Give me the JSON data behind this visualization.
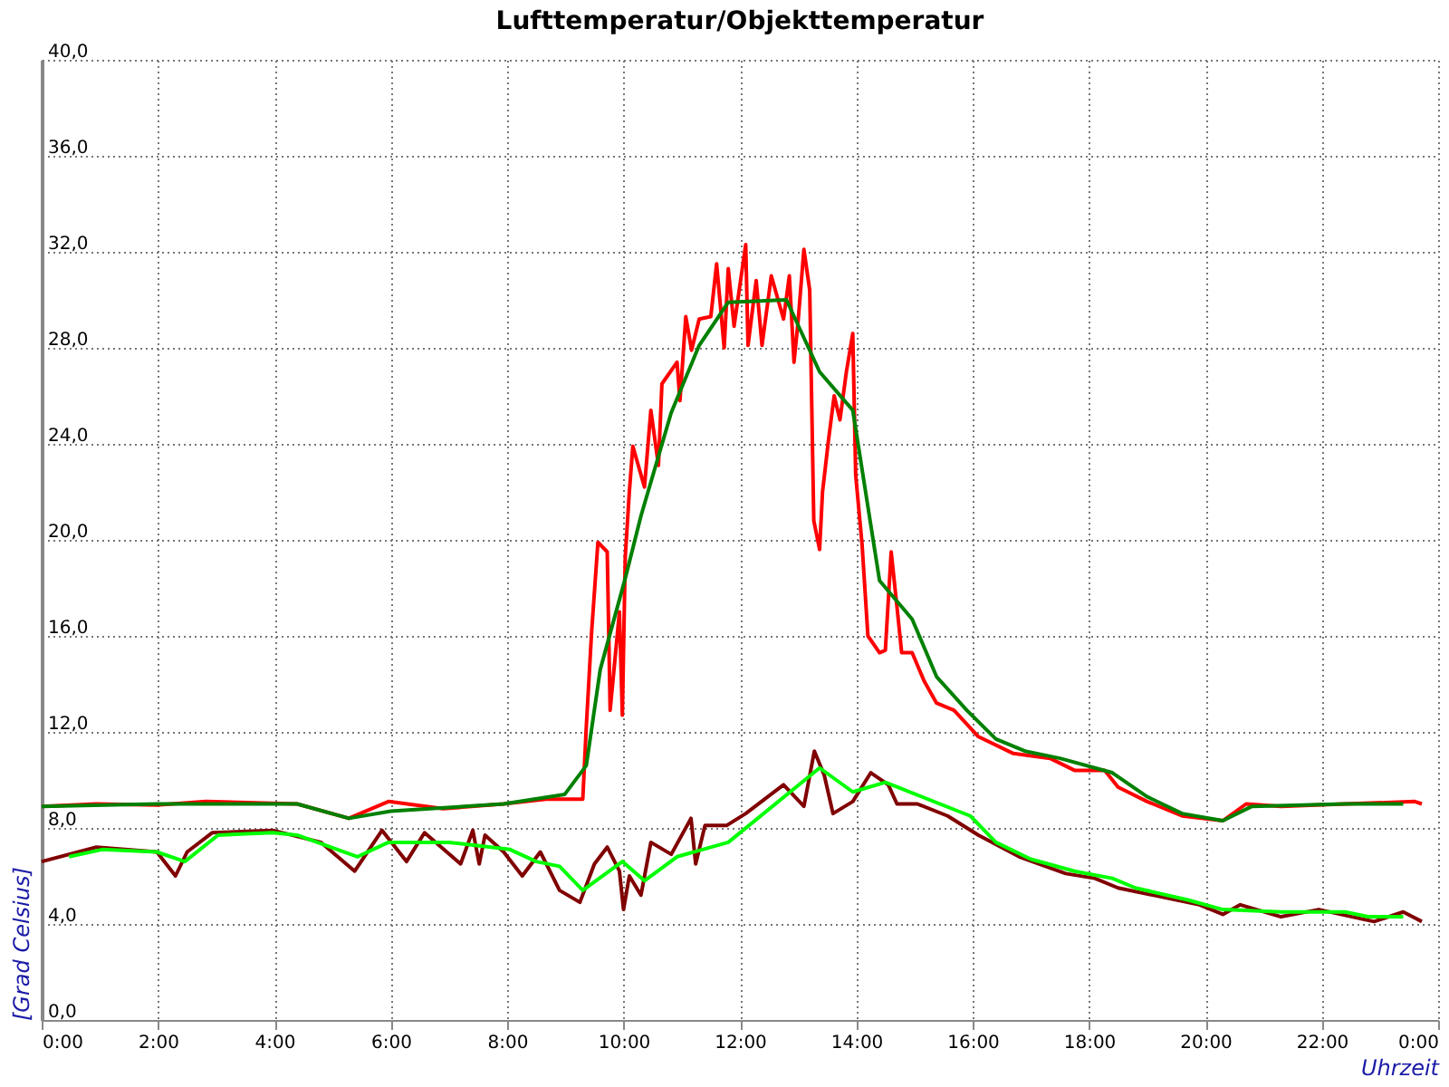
{
  "chart_data": {
    "type": "line",
    "title": "Lufttemperatur/Objekttemperatur",
    "xlabel": "Uhrzeit",
    "ylabel": "[Grad Celsius]",
    "xlim": [
      0,
      24
    ],
    "ylim": [
      0,
      40
    ],
    "xticks": [
      {
        "value": 0,
        "label": "0:00"
      },
      {
        "value": 2,
        "label": "2:00"
      },
      {
        "value": 4,
        "label": "4:00"
      },
      {
        "value": 6,
        "label": "6:00"
      },
      {
        "value": 8,
        "label": "8:00"
      },
      {
        "value": 10,
        "label": "10:00"
      },
      {
        "value": 12,
        "label": "12:00"
      },
      {
        "value": 14,
        "label": "14:00"
      },
      {
        "value": 16,
        "label": "16:00"
      },
      {
        "value": 18,
        "label": "18:00"
      },
      {
        "value": 20,
        "label": "20:00"
      },
      {
        "value": 22,
        "label": "22:00"
      },
      {
        "value": 24,
        "label": "0:00"
      }
    ],
    "yticks": [
      {
        "value": 0,
        "label": "0,0"
      },
      {
        "value": 4,
        "label": "4,0"
      },
      {
        "value": 8,
        "label": "8,0"
      },
      {
        "value": 12,
        "label": "12,0"
      },
      {
        "value": 16,
        "label": "16,0"
      },
      {
        "value": 20,
        "label": "20,0"
      },
      {
        "value": 24,
        "label": "24,0"
      },
      {
        "value": 28,
        "label": "28,0"
      },
      {
        "value": 32,
        "label": "32,0"
      },
      {
        "value": 36,
        "label": "36,0"
      },
      {
        "value": 40,
        "label": "40,0"
      }
    ],
    "grid": true,
    "line_style": "solid",
    "marker": "none",
    "series": [
      {
        "color": "#ff0000",
        "x": [
          0,
          0.94,
          1.98,
          2.82,
          4.39,
          5.28,
          5.96,
          6.9,
          7.94,
          8.67,
          9.3,
          9.36,
          9.45,
          9.56,
          9.72,
          9.77,
          9.93,
          9.98,
          10.03,
          10.1,
          10.16,
          10.36,
          10.47,
          10.6,
          10.66,
          10.92,
          10.97,
          11.07,
          11.17,
          11.3,
          11.5,
          11.6,
          11.73,
          11.8,
          11.9,
          12.1,
          12.14,
          12.28,
          12.38,
          12.54,
          12.75,
          12.85,
          12.93,
          13.0,
          13.1,
          13.2,
          13.27,
          13.37,
          13.42,
          13.52,
          13.62,
          13.72,
          13.83,
          13.94,
          13.99,
          14.1,
          14.2,
          14.4,
          14.5,
          14.6,
          14.7,
          14.78,
          14.96,
          15.17,
          15.38,
          15.68,
          16.1,
          16.7,
          17.33,
          17.75,
          18.27,
          18.5,
          19.0,
          19.6,
          20.3,
          20.7,
          21.3,
          22.4,
          23.6,
          23.72
        ],
        "values": [
          8.9,
          9.0,
          8.95,
          9.1,
          9.0,
          8.4,
          9.1,
          8.8,
          9.0,
          9.2,
          9.2,
          12.2,
          16.1,
          19.9,
          19.5,
          12.9,
          17.0,
          12.7,
          19.3,
          22.0,
          23.9,
          22.2,
          25.4,
          23.1,
          26.5,
          27.4,
          25.8,
          29.3,
          27.9,
          29.2,
          29.3,
          31.5,
          28.0,
          31.3,
          28.9,
          32.3,
          28.1,
          30.8,
          28.1,
          31.0,
          29.2,
          31.0,
          27.4,
          29.1,
          32.1,
          30.4,
          20.8,
          19.6,
          22.0,
          24.1,
          26.0,
          25.0,
          27.0,
          28.6,
          22.7,
          19.8,
          16.0,
          15.3,
          15.4,
          19.5,
          17.2,
          15.3,
          15.3,
          14.1,
          13.2,
          12.9,
          11.8,
          11.1,
          10.9,
          10.4,
          10.4,
          9.7,
          9.1,
          8.5,
          8.3,
          9.0,
          8.9,
          9.0,
          9.1,
          9.0
        ]
      },
      {
        "color": "#008000",
        "x": [
          0,
          1.98,
          4.39,
          5.28,
          6.0,
          7.94,
          8.99,
          9.36,
          9.6,
          10.03,
          10.3,
          10.82,
          11.3,
          11.8,
          12.8,
          13.37,
          13.94,
          14.4,
          14.96,
          15.38,
          15.9,
          16.4,
          16.9,
          17.5,
          18.4,
          19.0,
          19.6,
          20.3,
          20.8,
          22.4,
          23.4
        ],
        "values": [
          8.9,
          9.0,
          9.0,
          8.4,
          8.7,
          9.0,
          9.4,
          10.6,
          14.6,
          18.4,
          21.0,
          25.3,
          28.1,
          29.9,
          30.0,
          27.0,
          25.4,
          18.3,
          16.7,
          14.3,
          12.9,
          11.7,
          11.2,
          10.9,
          10.3,
          9.3,
          8.6,
          8.3,
          8.9,
          9.0,
          9.0
        ]
      },
      {
        "color": "#800000",
        "x": [
          0,
          0.94,
          1.98,
          2.3,
          2.5,
          2.93,
          3.97,
          4.8,
          5.38,
          5.85,
          6.27,
          6.58,
          7.2,
          7.41,
          7.52,
          7.62,
          7.94,
          8.26,
          8.57,
          8.9,
          9.25,
          9.5,
          9.72,
          9.93,
          10.0,
          10.1,
          10.3,
          10.47,
          10.82,
          11.16,
          11.24,
          11.4,
          11.77,
          12.1,
          12.75,
          13.1,
          13.28,
          13.45,
          13.6,
          13.94,
          14.25,
          14.55,
          14.7,
          15.05,
          15.57,
          16.1,
          16.8,
          17.6,
          18.1,
          18.5,
          19.9,
          20.3,
          20.6,
          21.3,
          21.95,
          22.9,
          23.4,
          23.72
        ],
        "values": [
          6.6,
          7.2,
          7.0,
          6.0,
          7.0,
          7.8,
          7.9,
          7.4,
          6.2,
          7.9,
          6.6,
          7.8,
          6.5,
          7.9,
          6.5,
          7.7,
          7.0,
          6.0,
          7.0,
          5.4,
          4.9,
          6.5,
          7.2,
          6.2,
          4.6,
          6.0,
          5.2,
          7.4,
          6.9,
          8.4,
          6.5,
          8.1,
          8.1,
          8.6,
          9.8,
          8.9,
          11.2,
          10.2,
          8.6,
          9.1,
          10.3,
          9.8,
          9.0,
          9.0,
          8.5,
          7.7,
          6.8,
          6.1,
          5.9,
          5.5,
          4.8,
          4.4,
          4.8,
          4.3,
          4.6,
          4.1,
          4.5,
          4.1
        ]
      },
      {
        "color": "#00ff00",
        "x": [
          0.47,
          1.04,
          1.98,
          2.46,
          3.03,
          3.97,
          4.39,
          5.43,
          5.96,
          7.0,
          8.05,
          8.5,
          8.9,
          9.3,
          9.98,
          10.36,
          10.92,
          11.8,
          13.37,
          13.94,
          14.5,
          15.96,
          16.4,
          17.0,
          17.75,
          18.4,
          18.8,
          19.7,
          20.3,
          21.3,
          22.4,
          22.8,
          23.4
        ],
        "values": [
          6.8,
          7.1,
          7.0,
          6.6,
          7.7,
          7.8,
          7.7,
          6.8,
          7.4,
          7.4,
          7.1,
          6.6,
          6.4,
          5.4,
          6.6,
          5.8,
          6.8,
          7.4,
          10.5,
          9.5,
          9.9,
          8.5,
          7.4,
          6.7,
          6.2,
          5.9,
          5.5,
          5.0,
          4.6,
          4.5,
          4.5,
          4.3,
          4.3
        ]
      }
    ]
  }
}
